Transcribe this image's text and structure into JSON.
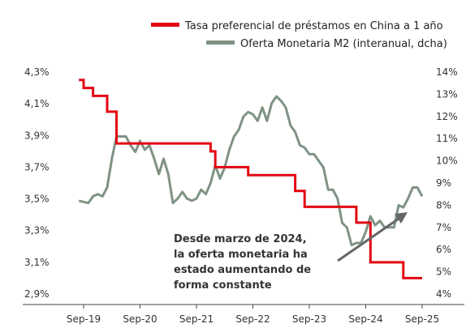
{
  "chart_data": {
    "type": "line",
    "legend_position": "top-right",
    "grid": false,
    "y_left": {
      "ticks": [
        "4,3%",
        "4,1%",
        "3,9%",
        "3,7%",
        "3,5%",
        "3,3%",
        "3,1%",
        "2,9%"
      ],
      "range": [
        2.9,
        4.3
      ]
    },
    "y_right": {
      "ticks": [
        "14%",
        "13%",
        "12%",
        "11%",
        "10%",
        "9%",
        "8%",
        "7%",
        "6%",
        "5%",
        "4%"
      ],
      "range": [
        4,
        14
      ]
    },
    "x_ticks": [
      "Sep-19",
      "Sep-20",
      "Sep-21",
      "Sep-22",
      "Sep-23",
      "Sep-24",
      "Sep-25"
    ],
    "series": [
      {
        "name": "Tasa preferencial de préstamos en China a 1 año",
        "color": "#e30613",
        "axis": "left",
        "values": [
          [
            "2019-08",
            4.25
          ],
          [
            "2019-09",
            4.2
          ],
          [
            "2019-10",
            4.2
          ],
          [
            "2019-11",
            4.15
          ],
          [
            "2020-01",
            4.15
          ],
          [
            "2020-02",
            4.05
          ],
          [
            "2020-04",
            3.85
          ],
          [
            "2021-12",
            3.8
          ],
          [
            "2022-01",
            3.7
          ],
          [
            "2022-08",
            3.65
          ],
          [
            "2023-06",
            3.55
          ],
          [
            "2023-08",
            3.45
          ],
          [
            "2024-07",
            3.35
          ],
          [
            "2024-10",
            3.1
          ],
          [
            "2025-05",
            3.0
          ],
          [
            "2025-09",
            3.0
          ]
        ]
      },
      {
        "name": "Oferta Monetaria M2 (interanual, dcha)",
        "color": "#7f9384",
        "axis": "right",
        "values": [
          [
            "2019-08",
            8.2
          ],
          [
            "2019-10",
            8.1
          ],
          [
            "2019-11",
            8.4
          ],
          [
            "2019-12",
            8.5
          ],
          [
            "2020-01",
            8.4
          ],
          [
            "2020-02",
            8.8
          ],
          [
            "2020-03",
            10.1
          ],
          [
            "2020-04",
            11.1
          ],
          [
            "2020-05",
            11.1
          ],
          [
            "2020-06",
            11.1
          ],
          [
            "2020-07",
            10.7
          ],
          [
            "2020-08",
            10.4
          ],
          [
            "2020-09",
            10.9
          ],
          [
            "2020-10",
            10.5
          ],
          [
            "2020-11",
            10.7
          ],
          [
            "2020-12",
            10.1
          ],
          [
            "2021-01",
            9.4
          ],
          [
            "2021-02",
            10.1
          ],
          [
            "2021-03",
            9.4
          ],
          [
            "2021-04",
            8.1
          ],
          [
            "2021-05",
            8.3
          ],
          [
            "2021-06",
            8.6
          ],
          [
            "2021-07",
            8.3
          ],
          [
            "2021-08",
            8.2
          ],
          [
            "2021-09",
            8.3
          ],
          [
            "2021-10",
            8.7
          ],
          [
            "2021-11",
            8.5
          ],
          [
            "2021-12",
            9.0
          ],
          [
            "2022-01",
            9.8
          ],
          [
            "2022-02",
            9.2
          ],
          [
            "2022-03",
            9.7
          ],
          [
            "2022-04",
            10.5
          ],
          [
            "2022-05",
            11.1
          ],
          [
            "2022-06",
            11.4
          ],
          [
            "2022-07",
            12.0
          ],
          [
            "2022-08",
            12.2
          ],
          [
            "2022-09",
            12.1
          ],
          [
            "2022-10",
            11.8
          ],
          [
            "2022-11",
            12.4
          ],
          [
            "2022-12",
            11.8
          ],
          [
            "2023-01",
            12.6
          ],
          [
            "2023-02",
            12.9
          ],
          [
            "2023-03",
            12.7
          ],
          [
            "2023-04",
            12.4
          ],
          [
            "2023-05",
            11.6
          ],
          [
            "2023-06",
            11.3
          ],
          [
            "2023-07",
            10.7
          ],
          [
            "2023-08",
            10.6
          ],
          [
            "2023-09",
            10.3
          ],
          [
            "2023-10",
            10.3
          ],
          [
            "2023-11",
            10.0
          ],
          [
            "2023-12",
            9.7
          ],
          [
            "2024-01",
            8.7
          ],
          [
            "2024-02",
            8.7
          ],
          [
            "2024-03",
            8.3
          ],
          [
            "2024-04",
            7.2
          ],
          [
            "2024-05",
            7.0
          ],
          [
            "2024-06",
            6.2
          ],
          [
            "2024-07",
            6.3
          ],
          [
            "2024-08",
            6.3
          ],
          [
            "2024-09",
            6.8
          ],
          [
            "2024-10",
            7.5
          ],
          [
            "2024-11",
            7.1
          ],
          [
            "2024-12",
            7.3
          ],
          [
            "2025-01",
            7.0
          ],
          [
            "2025-02",
            7.0
          ],
          [
            "2025-03",
            7.0
          ],
          [
            "2025-04",
            8.0
          ],
          [
            "2025-05",
            7.9
          ],
          [
            "2025-06",
            8.3
          ],
          [
            "2025-07",
            8.8
          ],
          [
            "2025-08",
            8.8
          ],
          [
            "2025-09",
            8.4
          ]
        ]
      }
    ],
    "annotation": {
      "lines": [
        "Desde marzo de 2024,",
        "la oferta monetaria ha",
        "estado aumentando de",
        "forma constante"
      ],
      "arrow_color": "#666666"
    }
  }
}
